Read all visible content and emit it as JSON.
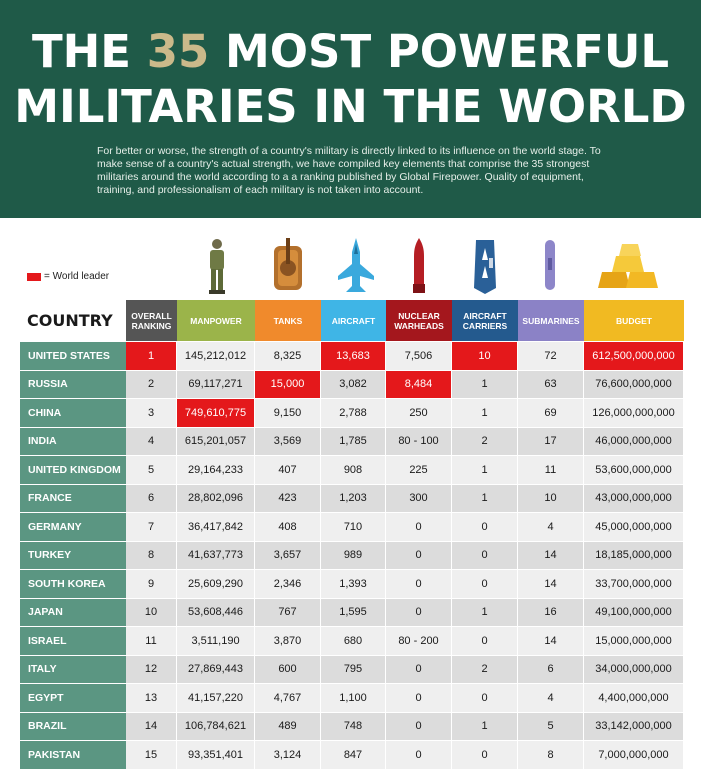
{
  "header": {
    "title_line1_pre": "THE ",
    "title_line1_num": "35",
    "title_line1_post": " MOST POWERFUL",
    "title_line2": "MILITARIES IN THE WORLD",
    "intro": "For better or worse, the strength of a country's military is directly linked to its influence on the world stage. To make sense of a country's actual strength, we have compiled key elements that comprise the 35 strongest militaries around the world according to a a ranking published by Global Firepower. Quality of equipment, training, and professionalism of each military is not taken into account."
  },
  "legend": {
    "label": "= World leader",
    "color": "#e4181b"
  },
  "icons": [
    "soldier-icon",
    "tank-icon",
    "jet-icon",
    "warhead-icon",
    "carrier-icon",
    "submarine-icon",
    "gold-bars-icon"
  ],
  "colors": {
    "header_bg": "#1f5a48",
    "title_accent": "#cbb98a",
    "country_bg": "#5b9682",
    "leader": "#e4181b",
    "col_ranking": "#555555",
    "col_manpower": "#9bb44a",
    "col_tanks": "#f08a2c",
    "col_aircraft": "#3fb5e6",
    "col_nuclear": "#a4171d",
    "col_carriers": "#245a8e",
    "col_submarines": "#8b82c6",
    "col_budget": "#f1ba22"
  },
  "chart_data": {
    "type": "table",
    "title": "THE 35 MOST POWERFUL MILITARIES IN THE WORLD",
    "row_header": "COUNTRY",
    "columns": [
      {
        "key": "rank",
        "label": "OVERALL\nRANKING",
        "color": "#555555"
      },
      {
        "key": "manpower",
        "label": "MANPOWER",
        "color": "#9bb44a"
      },
      {
        "key": "tanks",
        "label": "TANKS",
        "color": "#f08a2c"
      },
      {
        "key": "aircraft",
        "label": "AIRCRAFT",
        "color": "#3fb5e6"
      },
      {
        "key": "nuclear",
        "label": "NUCLEAR\nWARHEADS",
        "color": "#a4171d"
      },
      {
        "key": "carriers",
        "label": "AIRCRAFT\nCARRIERS",
        "color": "#245a8e"
      },
      {
        "key": "submarines",
        "label": "SUBMARINES",
        "color": "#8b82c6"
      },
      {
        "key": "budget",
        "label": "BUDGET",
        "color": "#f1ba22"
      }
    ],
    "rows": [
      {
        "country": "UNITED STATES",
        "rank": "1",
        "manpower": "145,212,012",
        "tanks": "8,325",
        "aircraft": "13,683",
        "nuclear": "7,506",
        "carriers": "10",
        "submarines": "72",
        "budget": "612,500,000,000",
        "leaders": [
          "rank",
          "aircraft",
          "carriers",
          "budget"
        ]
      },
      {
        "country": "RUSSIA",
        "rank": "2",
        "manpower": "69,117,271",
        "tanks": "15,000",
        "aircraft": "3,082",
        "nuclear": "8,484",
        "carriers": "1",
        "submarines": "63",
        "budget": "76,600,000,000",
        "leaders": [
          "tanks",
          "nuclear"
        ]
      },
      {
        "country": "CHINA",
        "rank": "3",
        "manpower": "749,610,775",
        "tanks": "9,150",
        "aircraft": "2,788",
        "nuclear": "250",
        "carriers": "1",
        "submarines": "69",
        "budget": "126,000,000,000",
        "leaders": [
          "manpower"
        ]
      },
      {
        "country": "INDIA",
        "rank": "4",
        "manpower": "615,201,057",
        "tanks": "3,569",
        "aircraft": "1,785",
        "nuclear": "80 - 100",
        "carriers": "2",
        "submarines": "17",
        "budget": "46,000,000,000",
        "leaders": []
      },
      {
        "country": "UNITED KINGDOM",
        "rank": "5",
        "manpower": "29,164,233",
        "tanks": "407",
        "aircraft": "908",
        "nuclear": "225",
        "carriers": "1",
        "submarines": "11",
        "budget": "53,600,000,000",
        "leaders": []
      },
      {
        "country": "FRANCE",
        "rank": "6",
        "manpower": "28,802,096",
        "tanks": "423",
        "aircraft": "1,203",
        "nuclear": "300",
        "carriers": "1",
        "submarines": "10",
        "budget": "43,000,000,000",
        "leaders": []
      },
      {
        "country": "GERMANY",
        "rank": "7",
        "manpower": "36,417,842",
        "tanks": "408",
        "aircraft": "710",
        "nuclear": "0",
        "carriers": "0",
        "submarines": "4",
        "budget": "45,000,000,000",
        "leaders": []
      },
      {
        "country": "TURKEY",
        "rank": "8",
        "manpower": "41,637,773",
        "tanks": "3,657",
        "aircraft": "989",
        "nuclear": "0",
        "carriers": "0",
        "submarines": "14",
        "budget": "18,185,000,000",
        "leaders": []
      },
      {
        "country": "SOUTH KOREA",
        "rank": "9",
        "manpower": "25,609,290",
        "tanks": "2,346",
        "aircraft": "1,393",
        "nuclear": "0",
        "carriers": "0",
        "submarines": "14",
        "budget": "33,700,000,000",
        "leaders": []
      },
      {
        "country": "JAPAN",
        "rank": "10",
        "manpower": "53,608,446",
        "tanks": "767",
        "aircraft": "1,595",
        "nuclear": "0",
        "carriers": "1",
        "submarines": "16",
        "budget": "49,100,000,000",
        "leaders": []
      },
      {
        "country": "ISRAEL",
        "rank": "11",
        "manpower": "3,511,190",
        "tanks": "3,870",
        "aircraft": "680",
        "nuclear": "80 - 200",
        "carriers": "0",
        "submarines": "14",
        "budget": "15,000,000,000",
        "leaders": []
      },
      {
        "country": "ITALY",
        "rank": "12",
        "manpower": "27,869,443",
        "tanks": "600",
        "aircraft": "795",
        "nuclear": "0",
        "carriers": "2",
        "submarines": "6",
        "budget": "34,000,000,000",
        "leaders": []
      },
      {
        "country": "EGYPT",
        "rank": "13",
        "manpower": "41,157,220",
        "tanks": "4,767",
        "aircraft": "1,100",
        "nuclear": "0",
        "carriers": "0",
        "submarines": "4",
        "budget": "4,400,000,000",
        "leaders": []
      },
      {
        "country": "BRAZIL",
        "rank": "14",
        "manpower": "106,784,621",
        "tanks": "489",
        "aircraft": "748",
        "nuclear": "0",
        "carriers": "1",
        "submarines": "5",
        "budget": "33,142,000,000",
        "leaders": []
      },
      {
        "country": "PAKISTAN",
        "rank": "15",
        "manpower": "93,351,401",
        "tanks": "3,124",
        "aircraft": "847",
        "nuclear": "0",
        "carriers": "0",
        "submarines": "8",
        "budget": "7,000,000,000",
        "leaders": []
      }
    ]
  }
}
